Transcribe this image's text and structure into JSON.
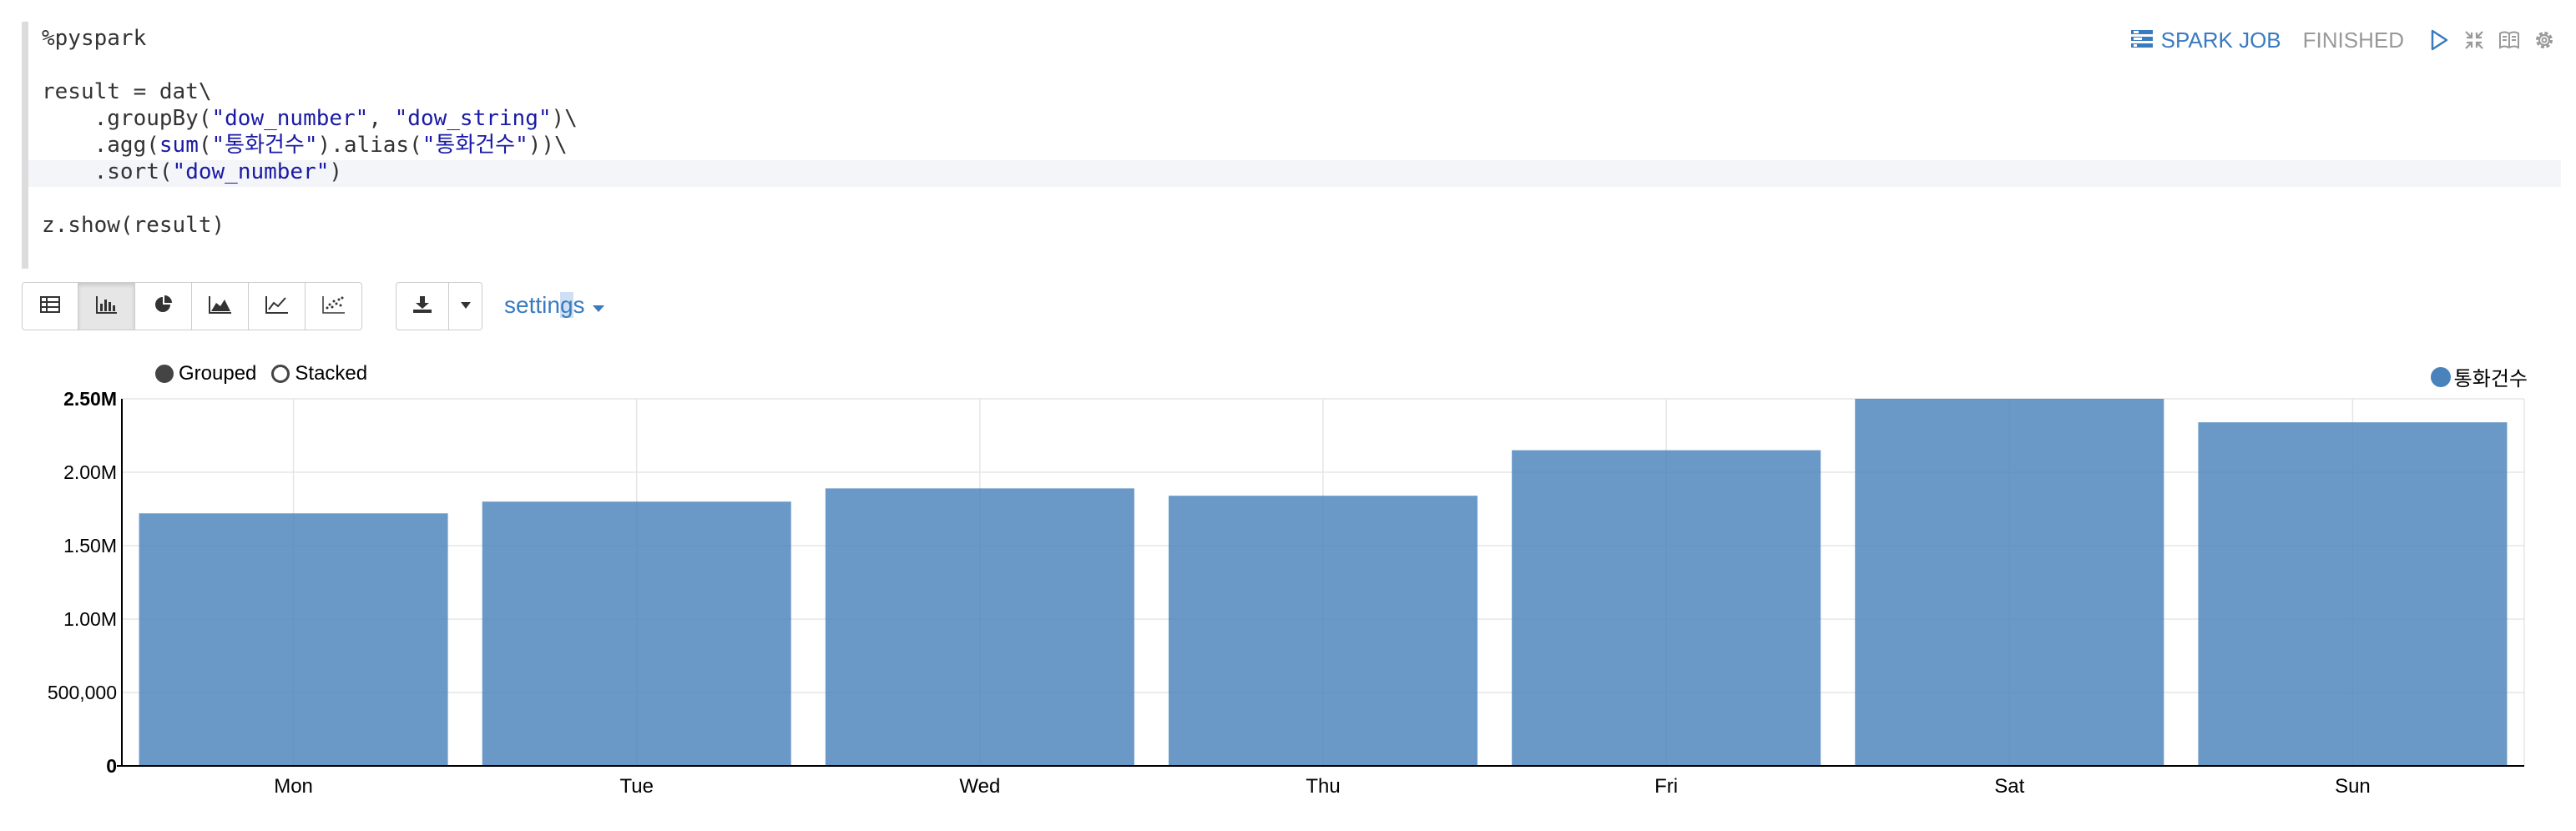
{
  "code": {
    "lines": [
      "%pyspark",
      "",
      "result = dat\\",
      "    .groupBy(\"dow_number\", \"dow_string\")\\",
      "    .agg(sum(\"통화건수\").alias(\"통화건수\"))\\",
      "    .sort(\"dow_number\")",
      "",
      "z.show(result)"
    ]
  },
  "paragraph": {
    "spark_job_label": "SPARK JOB",
    "status": "FINISHED",
    "icons": [
      "tasks-icon",
      "play-icon",
      "expand-icon",
      "book-icon",
      "gear-icon"
    ]
  },
  "toolbar": {
    "buttons": [
      {
        "name": "table-view-button",
        "icon": "table-icon"
      },
      {
        "name": "bar-chart-view-button",
        "icon": "bar-chart-icon",
        "active": true
      },
      {
        "name": "pie-chart-view-button",
        "icon": "pie-chart-icon"
      },
      {
        "name": "area-chart-view-button",
        "icon": "area-chart-icon"
      },
      {
        "name": "line-chart-view-button",
        "icon": "line-chart-icon"
      },
      {
        "name": "scatter-chart-view-button",
        "icon": "scatter-chart-icon"
      }
    ],
    "settings_prefix": "settin",
    "settings_highlight": "g",
    "settings_suffix": "s"
  },
  "chart_controls": {
    "grouped_label": "Grouped",
    "stacked_label": "Stacked",
    "mode": "grouped"
  },
  "colors": {
    "bar": "#4a82bb",
    "accent": "#3a7bbf"
  },
  "chart_data": {
    "type": "bar",
    "categories": [
      "Mon",
      "Tue",
      "Wed",
      "Thu",
      "Fri",
      "Sat",
      "Sun"
    ],
    "series": [
      {
        "name": "통화건수",
        "values": [
          1720000,
          1800000,
          1890000,
          1840000,
          2150000,
          2500000,
          2340000
        ]
      }
    ],
    "ylim": [
      0,
      2500000
    ],
    "yticks": [
      0,
      500000,
      1000000,
      1500000,
      2000000,
      2500000
    ],
    "ytick_labels": [
      "0",
      "500,000",
      "1.00M",
      "1.50M",
      "2.00M",
      "2.50M"
    ],
    "grid": true,
    "legend_position": "top-right"
  }
}
